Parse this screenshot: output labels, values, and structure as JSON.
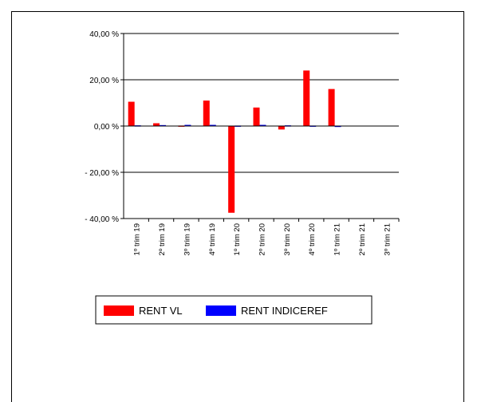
{
  "chart_data": {
    "type": "bar",
    "categories": [
      "1º trim 19",
      "2º trim 19",
      "3º trim 19",
      "4º trim 19",
      "1º trim 20",
      "2º trim 20",
      "3º trim 20",
      "4º trim 20",
      "1º trim 21",
      "2º trim 21",
      "3º trim 21"
    ],
    "series": [
      {
        "name": "RENT VL",
        "color": "#ff0000",
        "values": [
          10.5,
          1.2,
          0.2,
          11.0,
          -37.5,
          8.0,
          -1.5,
          24.0,
          16.0,
          null,
          null
        ]
      },
      {
        "name": "RENT INDICEREF",
        "color": "#0000ff",
        "values": [
          0.3,
          0.4,
          0.5,
          0.5,
          0.2,
          0.5,
          0.3,
          0.2,
          0.1,
          null,
          null
        ]
      }
    ],
    "ylim": [
      -40,
      40
    ],
    "yticks": [
      40,
      20,
      0,
      -20,
      -40
    ],
    "ytick_labels": [
      "40,00 %",
      "20,00 %",
      "0,00 %",
      "- 20,00 %",
      "- 40,00 %"
    ],
    "gridlines": true,
    "legend_position": "bottom-left",
    "title": "",
    "xlabel": "",
    "ylabel": ""
  }
}
